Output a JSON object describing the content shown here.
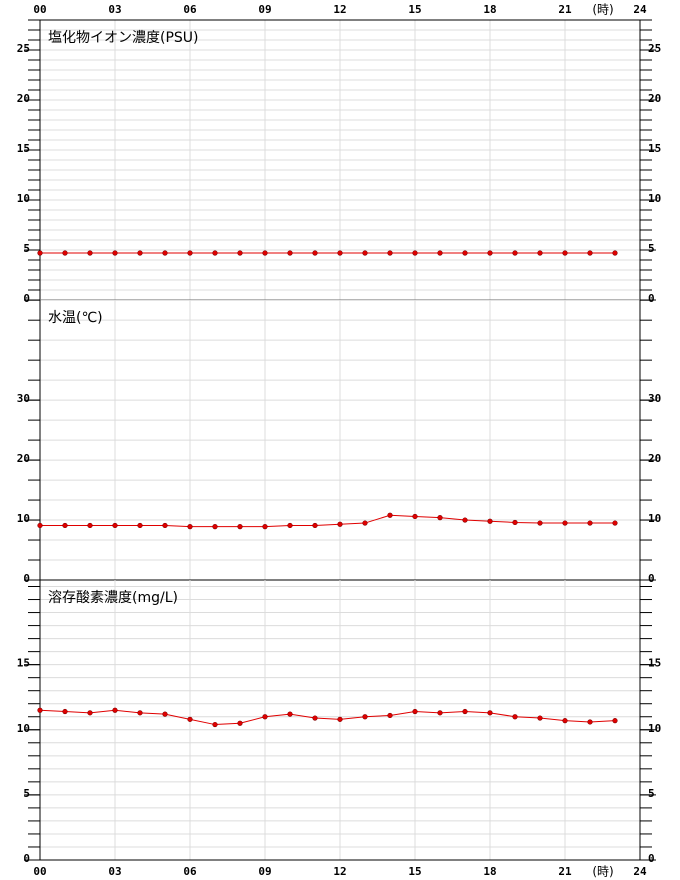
{
  "chart_data": [
    {
      "type": "line",
      "title": "塩化物イオン濃度(PSU)",
      "color": "#e00000",
      "x": [
        0,
        1,
        2,
        3,
        4,
        5,
        6,
        7,
        8,
        9,
        10,
        11,
        12,
        13,
        14,
        15,
        16,
        17,
        18,
        19,
        20,
        21,
        22,
        23
      ],
      "values": [
        4.7,
        4.7,
        4.7,
        4.7,
        4.7,
        4.7,
        4.7,
        4.7,
        4.7,
        4.7,
        4.7,
        4.7,
        4.7,
        4.7,
        4.7,
        4.7,
        4.7,
        4.7,
        4.7,
        4.7,
        4.7,
        4.7,
        4.7,
        4.7
      ],
      "xlim": [
        0,
        24
      ],
      "xticks": [
        {
          "value": 0,
          "label": "00"
        },
        {
          "value": 3,
          "label": "03"
        },
        {
          "value": 6,
          "label": "06"
        },
        {
          "value": 9,
          "label": "09"
        },
        12,
        15,
        18,
        21,
        24
      ],
      "x_unit": "(時)",
      "ylim": [
        0,
        28
      ],
      "yticks": [
        0,
        5,
        10,
        15,
        20,
        25
      ],
      "minor_per_major": 5
    },
    {
      "type": "line",
      "title": "水温(℃)",
      "color": "#e00000",
      "x": [
        0,
        1,
        2,
        3,
        4,
        5,
        6,
        7,
        8,
        9,
        10,
        11,
        12,
        13,
        14,
        15,
        16,
        17,
        18,
        19,
        20,
        21,
        22,
        23
      ],
      "values": [
        9.1,
        9.1,
        9.1,
        9.1,
        9.1,
        9.1,
        8.9,
        8.9,
        8.9,
        8.9,
        9.1,
        9.1,
        9.3,
        9.5,
        10.8,
        10.6,
        10.4,
        10.0,
        9.8,
        9.6,
        9.5,
        9.5,
        9.5,
        9.5
      ],
      "xlim": [
        0,
        24
      ],
      "xticks": [
        {
          "value": 0,
          "label": "00"
        },
        {
          "value": 3,
          "label": "03"
        },
        {
          "value": 6,
          "label": "06"
        },
        {
          "value": 9,
          "label": "09"
        },
        12,
        15,
        18,
        21,
        24
      ],
      "ylim": [
        0,
        46.7
      ],
      "yticks": [
        0,
        10,
        20,
        30
      ],
      "minor_per_major": 3
    },
    {
      "type": "line",
      "title": "溶存酸素濃度(mg/L)",
      "color": "#e00000",
      "x": [
        0,
        1,
        2,
        3,
        4,
        5,
        6,
        7,
        8,
        9,
        10,
        11,
        12,
        13,
        14,
        15,
        16,
        17,
        18,
        19,
        20,
        21,
        22,
        23
      ],
      "values": [
        11.5,
        11.4,
        11.3,
        11.5,
        11.3,
        11.2,
        10.8,
        10.4,
        10.5,
        11.0,
        11.2,
        10.9,
        10.8,
        11.0,
        11.1,
        11.4,
        11.3,
        11.4,
        11.3,
        11.0,
        10.9,
        10.7,
        10.6,
        10.7
      ],
      "xlim": [
        0,
        24
      ],
      "xticks": [
        {
          "value": 0,
          "label": "00"
        },
        {
          "value": 3,
          "label": "03"
        },
        {
          "value": 6,
          "label": "06"
        },
        {
          "value": 9,
          "label": "09"
        },
        12,
        15,
        18,
        21,
        24
      ],
      "x_unit": "(時)",
      "ylim": [
        0,
        21.5
      ],
      "yticks": [
        0,
        5,
        10,
        15
      ],
      "minor_per_major": 5
    }
  ]
}
